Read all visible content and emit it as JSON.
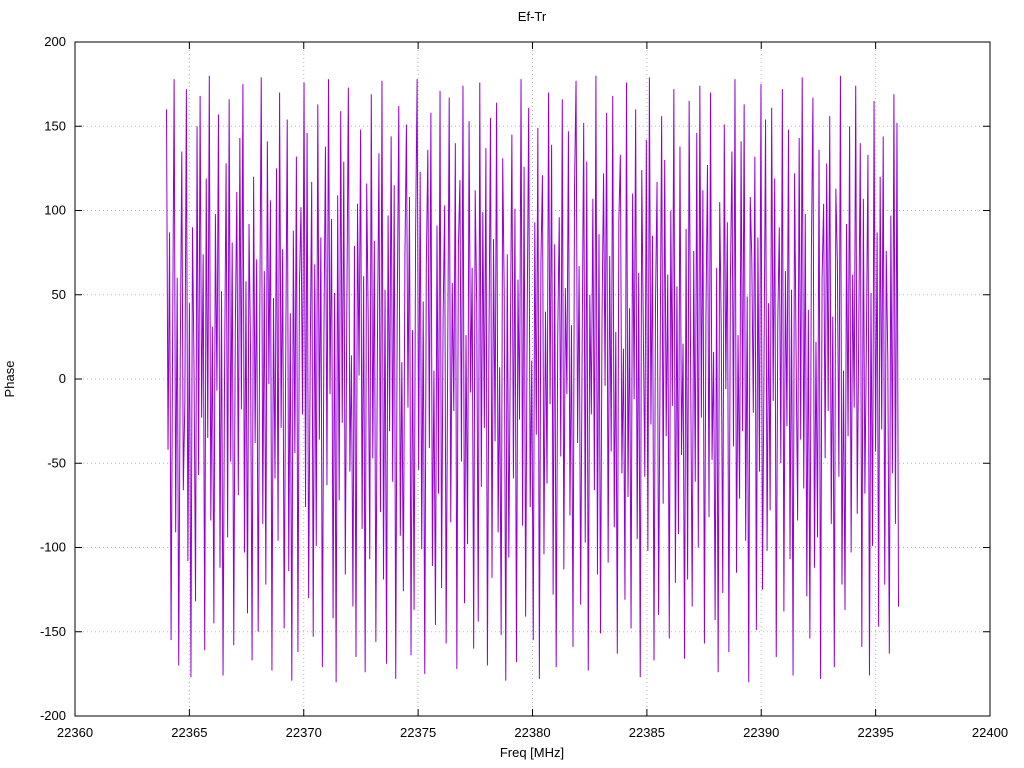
{
  "chart_data": {
    "type": "line",
    "title": "Ef-Tr",
    "xlabel": "Freq [MHz]",
    "ylabel": "Phase",
    "xlim": [
      22360,
      22400
    ],
    "ylim": [
      -200,
      200
    ],
    "x_ticks": [
      22360,
      22365,
      22370,
      22375,
      22380,
      22385,
      22390,
      22395,
      22400
    ],
    "y_ticks": [
      -200,
      -150,
      -100,
      -50,
      0,
      50,
      100,
      150,
      200
    ],
    "grid": true,
    "legend": "none",
    "line_color": "#9400d3",
    "grid_color": "#b8b8b8",
    "border_color": "#000000",
    "series": [
      {
        "name": "Ef-Tr",
        "x_start": 22364.0,
        "x_end": 22396.0,
        "values": [
          160,
          -42,
          87,
          -155,
          23,
          178,
          -91,
          60,
          -170,
          12,
          135,
          -66,
          -14,
          172,
          -108,
          45,
          -177,
          90,
          8,
          -132,
          150,
          -57,
          168,
          -23,
          74,
          -161,
          119,
          -35,
          180,
          -84,
          31,
          -145,
          98,
          -7,
          157,
          -112,
          52,
          -176,
          4,
          128,
          -94,
          166,
          -49,
          81,
          -158,
          27,
          111,
          -69,
          143,
          -18,
          175,
          -103,
          58,
          -139,
          92,
          16,
          -167,
          120,
          -38,
          71,
          -150,
          33,
          179,
          -86,
          64,
          -122,
          141,
          -3,
          106,
          -173,
          48,
          -59,
          125,
          -96,
          170,
          -29,
          77,
          -148,
          11,
          154,
          -114,
          39,
          -179,
          88,
          -44,
          132,
          -162,
          56,
          102,
          -21,
          176,
          -76,
          146,
          -130,
          6,
          117,
          -153,
          68,
          -99,
          163,
          -36,
          84,
          -171,
          24,
          138,
          -63,
          178,
          -9,
          95,
          -142,
          51,
          -180,
          109,
          -72,
          159,
          -26,
          129,
          -116,
          41,
          173,
          -55,
          14,
          -135,
          79,
          -165,
          104,
          2,
          148,
          -89,
          61,
          -174,
          116,
          35,
          -107,
          169,
          -47,
          82,
          -156,
          19,
          134,
          -79,
          177,
          -119,
          53,
          -169,
          97,
          -31,
          144,
          -61,
          115,
          -178,
          43,
          162,
          -93,
          10,
          -126,
          71,
          151,
          -17,
          108,
          -164,
          29,
          -137,
          86,
          178,
          -54,
          123,
          -101,
          46,
          -175,
          65,
          136,
          -41,
          158,
          -111,
          5,
          -146,
          91,
          -68,
          171,
          -124,
          36,
          103,
          -157,
          13,
          167,
          -85,
          57,
          -19,
          140,
          -172,
          78,
          118,
          -49,
          174,
          -133,
          26,
          -98,
          153,
          -8,
          66,
          -160,
          112,
          44,
          -144,
          176,
          -64,
          99,
          -29,
          137,
          -170,
          22,
          155,
          -118,
          83,
          -37,
          164,
          -91,
          7,
          -152,
          131,
          49,
          -179,
          74,
          -106,
          17,
          145,
          -59,
          101,
          -168,
          59,
          -24,
          178,
          -87,
          126,
          -141,
          34,
          161,
          -76,
          11,
          -155,
          93,
          -33,
          149,
          -178,
          69,
          121,
          -104,
          40,
          -62,
          170,
          -15,
          139,
          -128,
          80,
          -171,
          25,
          96,
          -46,
          166,
          -113,
          54,
          -9,
          147,
          -81,
          32,
          -159,
          114,
          177,
          -38,
          67,
          -134,
          20,
          152,
          -97,
          129,
          -173,
          50,
          -21,
          107,
          -66,
          180,
          -116,
          86,
          -151,
          37,
          122,
          -4,
          158,
          -109,
          73,
          -43,
          168,
          -88,
          28,
          -163,
          94,
          133,
          -56,
          18,
          -131,
          176,
          -70,
          42,
          -148,
          110,
          -12,
          160,
          -95,
          63,
          -177,
          124,
          30,
          -58,
          142,
          -102,
          179,
          -27,
          85,
          -167,
          47,
          117,
          -140,
          9,
          156,
          -74,
          130,
          -34,
          62,
          -154,
          100,
          -16,
          172,
          -121,
          55,
          -92,
          138,
          -45,
          21,
          -166,
          89,
          -119,
          165,
          3,
          -135,
          76,
          -61,
          146,
          -100,
          174,
          -23,
          112,
          -157,
          38,
          127,
          -82,
          170,
          -48,
          16,
          -143,
          66,
          -174,
          105,
          31,
          -127,
          151,
          -6,
          93,
          -162,
          58,
          135,
          -40,
          178,
          -115,
          26,
          -71,
          141,
          -31,
          163,
          -96,
          49,
          -180,
          108,
          72,
          -20,
          132,
          -149,
          84,
          -55,
          175,
          -125,
          10,
          154,
          -102,
          45,
          -78,
          161,
          -13,
          119,
          -165,
          34,
          90,
          -50,
          172,
          -138,
          64,
          -28,
          148,
          -107,
          53,
          -176,
          122,
          15,
          -84,
          143,
          -36,
          179,
          -65,
          98,
          -129,
          41,
          -154,
          75,
          167,
          -112,
          22,
          -94,
          136,
          -178,
          60,
          104,
          -47,
          128,
          -19,
          156,
          -86,
          37,
          -171,
          113,
          70,
          -58,
          180,
          -122,
          5,
          -137,
          92,
          -34,
          150,
          -103,
          62,
          -17,
          174,
          -80,
          29,
          140,
          -159,
          107,
          -68,
          23,
          133,
          -176,
          51,
          -99,
          165,
          -43,
          87,
          -147,
          120,
          -30,
          144,
          -122,
          76,
          12,
          -163,
          97,
          -56,
          169,
          -86,
          152,
          -135
        ]
      }
    ]
  }
}
